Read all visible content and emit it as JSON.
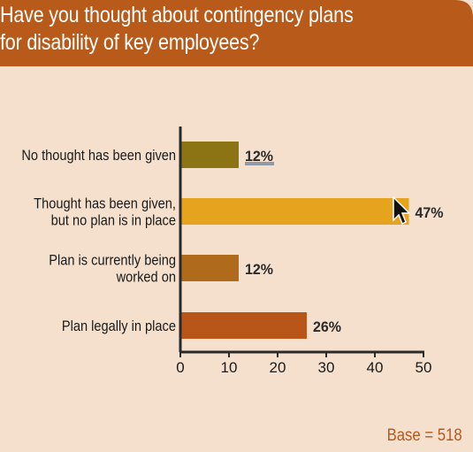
{
  "title": "Have you thought about contingency plans\nfor disability of key employees?",
  "base_note": "Base = 518",
  "colors": {
    "header": "#b85a1a",
    "background": "#f5e0cd",
    "axis": "#2a2a2a"
  },
  "chart_data": {
    "type": "bar",
    "orientation": "horizontal",
    "title": "Have you thought about contingency plans for disability of key employees?",
    "categories": [
      [
        "No thought has been given"
      ],
      [
        "Thought has been given,",
        "but no plan is in place"
      ],
      [
        "Plan is currently being",
        "worked on"
      ],
      [
        "Plan legally in place"
      ]
    ],
    "values": [
      12,
      47,
      12,
      26
    ],
    "value_labels": [
      "12%",
      "47%",
      "12%",
      "26%"
    ],
    "bar_colors": [
      "#8a7414",
      "#e6a31d",
      "#b06a1c",
      "#b8561a"
    ],
    "xlim": [
      0,
      50
    ],
    "xticks": [
      0,
      10,
      20,
      30,
      40,
      50
    ],
    "xlabel": "",
    "ylabel": "",
    "grid": false,
    "legend": "none"
  }
}
